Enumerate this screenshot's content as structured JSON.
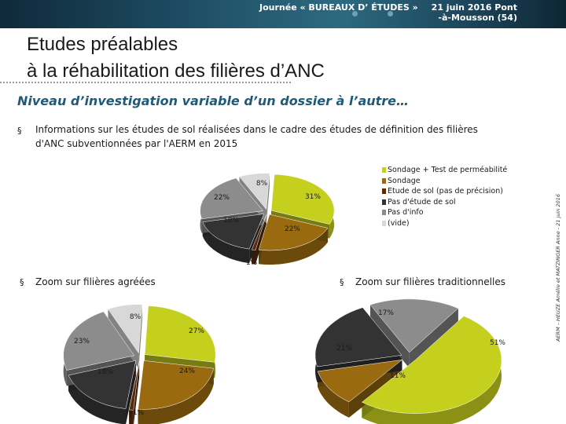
{
  "header": {
    "event": "Journée « BUREAUX D’ ÉTUDES »",
    "date_line1": "21 juin 2016 Pont",
    "date_line2": "-à-Mousson (54)"
  },
  "title": {
    "line1": "Etudes préalables",
    "line2": "à la réhabilitation des filières d’ANC"
  },
  "subtitle": "Niveau d’investigation variable d’un dossier à l’autre…",
  "bullets": {
    "main_line1": "Informations sur les études de sol réalisées dans le cadre des études de définition des filières",
    "main_line2": "d'ANC subventionnées par l'AERM en 2015",
    "agreees": "Zoom sur filières agréées",
    "traditionnelles": "Zoom sur filières traditionnelles"
  },
  "legend": [
    {
      "label": "Sondage + Test de perméabilité",
      "color": "#c5cf1e"
    },
    {
      "label": "Sondage",
      "color": "#9a6a10"
    },
    {
      "label": "Etude de sol (pas de précision)",
      "color": "#5a2a0a"
    },
    {
      "label": "Pas d'étude de sol",
      "color": "#333333"
    },
    {
      "label": "Pas d'info",
      "color": "#8c8c8c"
    },
    {
      "label": "(vide)",
      "color": "#d8d8d8"
    }
  ],
  "vertical_credit": "AERM – HEUZE Amélie et MATZINGER Anne - 21 juin 2016",
  "chart_data": [
    {
      "type": "pie",
      "name": "global",
      "series": [
        {
          "category": "Sondage + Test de perméabilité",
          "value": 31,
          "label": "31%"
        },
        {
          "category": "Sondage",
          "value": 22,
          "label": "22%"
        },
        {
          "category": "Etude de sol (pas de précision)",
          "value": 1,
          "label": "1%"
        },
        {
          "category": "Pas d'étude de sol",
          "value": 18,
          "label": "18%"
        },
        {
          "category": "Pas d'info",
          "value": 22,
          "label": "22%"
        },
        {
          "category": "(vide)",
          "value": 8,
          "label": "8%"
        }
      ]
    },
    {
      "type": "pie",
      "name": "agreees",
      "series": [
        {
          "category": "Sondage + Test de perméabilité",
          "value": 27,
          "label": "27%"
        },
        {
          "category": "Sondage",
          "value": 24,
          "label": "24%"
        },
        {
          "category": "Etude de sol (pas de précision)",
          "value": 1,
          "label": "1%"
        },
        {
          "category": "Pas d'étude de sol",
          "value": 18,
          "label": "18%"
        },
        {
          "category": "Pas d'info",
          "value": 23,
          "label": "23%"
        },
        {
          "category": "(vide)",
          "value": 8,
          "label": "8%"
        }
      ]
    },
    {
      "type": "pie",
      "name": "traditionnelles",
      "series": [
        {
          "category": "Sondage + Test de perméabilité",
          "value": 51,
          "label": "51%"
        },
        {
          "category": "Sondage",
          "value": 11,
          "label": "11%"
        },
        {
          "category": "Pas d'étude de sol",
          "value": 21,
          "label": "21%"
        },
        {
          "category": "Pas d'info",
          "value": 17,
          "label": "17%"
        }
      ]
    }
  ]
}
